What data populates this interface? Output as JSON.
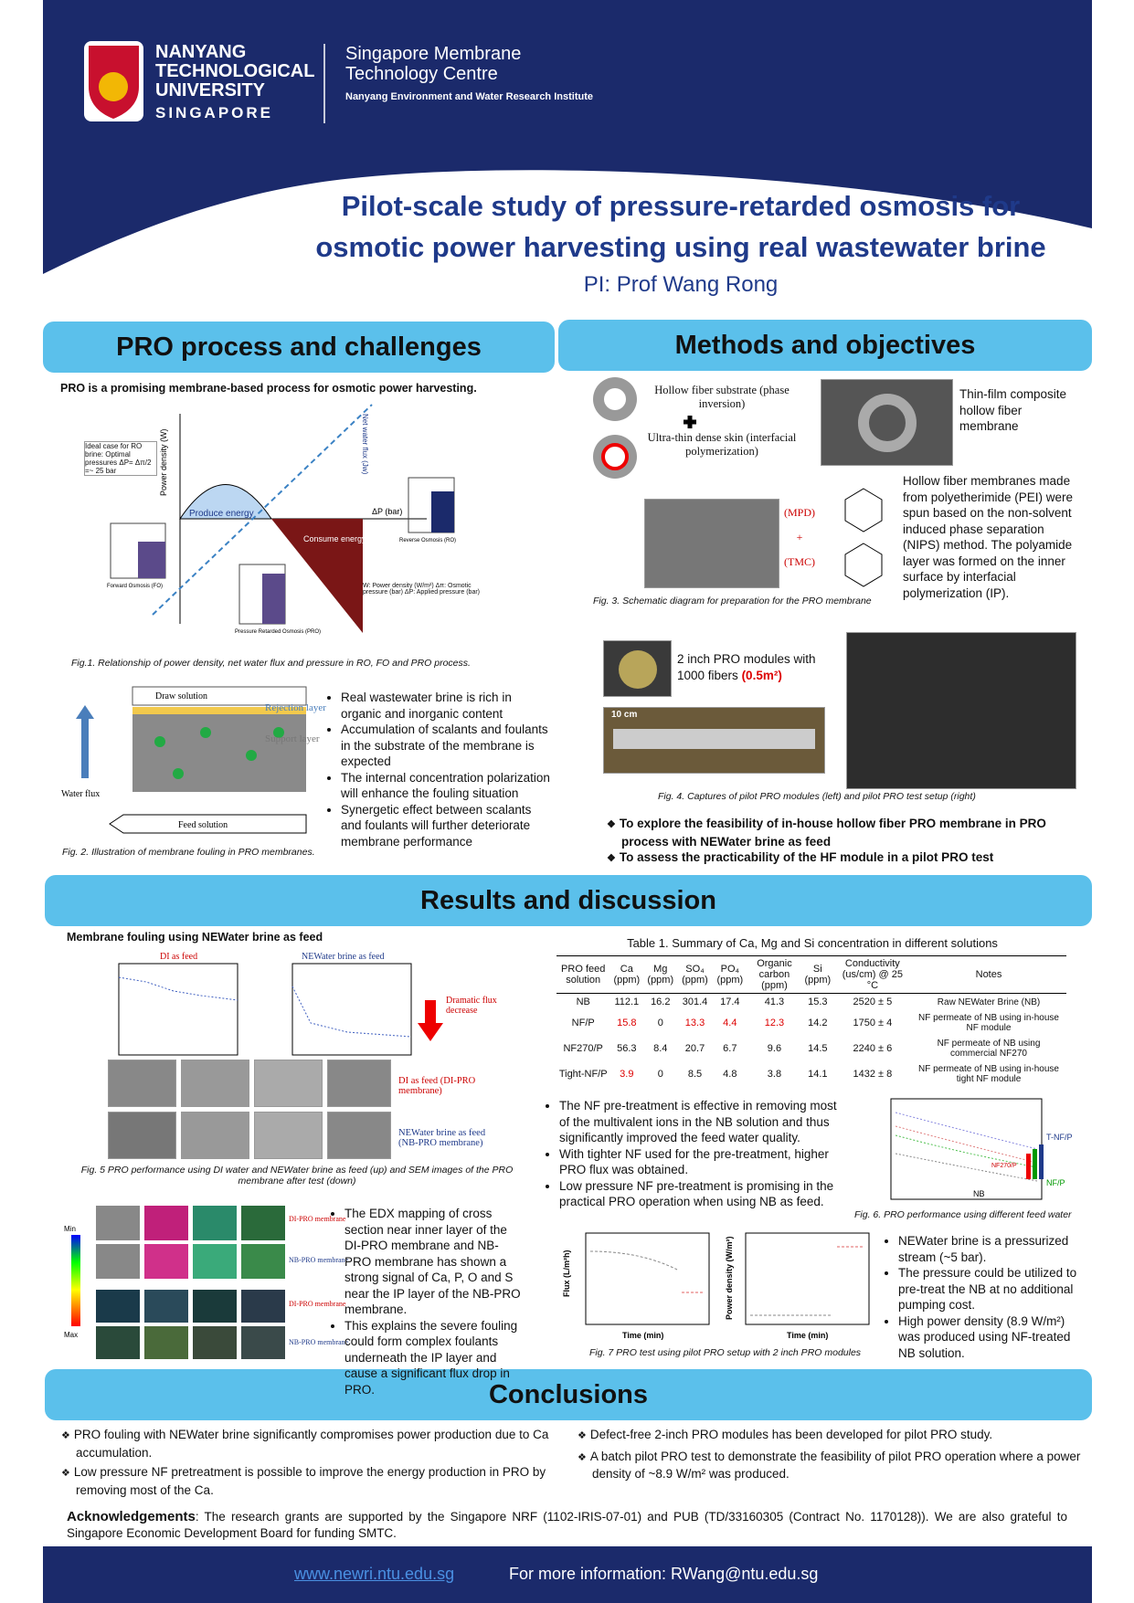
{
  "header": {
    "university": [
      "NANYANG",
      "TECHNOLOGICAL",
      "UNIVERSITY",
      "SINGAPORE"
    ],
    "centre": [
      "Singapore Membrane",
      "Technology Centre"
    ],
    "institute": "Nanyang Environment and Water Research Institute",
    "title": [
      "Pilot-scale study of pressure-retarded osmosis for",
      "osmotic power harvesting using real wastewater brine"
    ],
    "pi": "PI: Prof Wang Rong"
  },
  "pro_process": {
    "heading": "PRO process and challenges",
    "intro": "PRO is a promising membrane-based process for osmotic power harvesting.",
    "fig1_labels": [
      "Produce energy",
      "Consume energy",
      "ΔP (bar)",
      "Power density (W)",
      "Net water flux (Jw)",
      "Ideal case for RO brine: Optimal pressures ΔP= Δπ/2 =~ 25 bar",
      "Forward Osmosis (FO)",
      "Pressure Retarded Osmosis (PRO)",
      "Reverse Osmosis (RO)",
      "W: Power density (W/m²)  Δπ: Osmotic pressure (bar)  ΔP: Applied pressure (bar)"
    ],
    "fig1_caption": "Fig.1. Relationship of power density, net water flux and pressure in RO, FO and PRO process.",
    "fig2_labels": [
      "Draw solution",
      "Rejection layer",
      "Support layer",
      "Water flux",
      "Feed solution"
    ],
    "fig2_caption": "Fig. 2. Illustration of membrane fouling in PRO membranes.",
    "bullets": [
      "Real wastewater brine is rich in organic and inorganic content",
      "Accumulation of scalants and foulants in the substrate of the membrane is expected",
      "The internal concentration polarization will enhance the fouling situation",
      "Synergetic effect between scalants and foulants will further deteriorate membrane performance"
    ]
  },
  "methods": {
    "heading": "Methods and objectives",
    "fiber_labels": [
      "Hollow fiber substrate (phase inversion)",
      "Ultra-thin dense skin (interfacial polymerization)"
    ],
    "tfc_label": "Thin-film composite hollow fiber membrane",
    "chem_labels": [
      "(MPD)",
      "+",
      "(TMC)"
    ],
    "paragraph": "Hollow fiber membranes made from polyetherimide (PEI) were spun based on the non-solvent induced phase separation (NIPS) method. The polyamide layer was formed on the inner surface by interfacial polymerization (IP).",
    "fig3_caption": "Fig. 3. Schematic diagram for preparation for the PRO membrane",
    "module_text": "2 inch PRO modules with 1000 fibers",
    "module_area": "(0.5m²)",
    "scale_label": "10 cm",
    "fig4_caption": "Fig. 4. Captures of pilot PRO modules (left) and pilot PRO test setup (right)",
    "objectives": [
      "To explore the feasibility of in-house hollow fiber PRO membrane in PRO process with NEWater brine as feed",
      "To assess the practicability of the HF module in a pilot PRO test"
    ]
  },
  "results": {
    "heading": "Results and discussion",
    "subheading": "Membrane fouling using NEWater brine as feed",
    "fig5_labels": [
      "DI as feed",
      "NEWater brine as feed",
      "Dramatic flux decrease",
      "DI as feed (DI-PRO membrane)",
      "NEWater brine as feed (NB-PRO membrane)"
    ],
    "fig5_caption": "Fig. 5 PRO performance using DI water and NEWater brine as feed (up) and SEM images of the PRO membrane after test (down)",
    "edx_labels": [
      "DI-PRO membrane",
      "NB-PRO membrane",
      "DI-PRO membrane",
      "NB-PRO membrane",
      "Min",
      "Max"
    ],
    "edx_bullets": [
      "The EDX mapping of cross section near inner layer of the DI-PRO membrane and NB-PRO membrane has shown a strong signal of Ca, P, O and S near the IP layer of the NB-PRO membrane.",
      "This explains the severe fouling could form complex foulants underneath the IP layer and cause a significant flux drop in PRO."
    ],
    "table": {
      "title": "Table 1. Summary of Ca, Mg and Si concentration in different solutions",
      "headers": [
        "PRO feed solution",
        "Ca (ppm)",
        "Mg (ppm)",
        "SO₄ (ppm)",
        "PO₄ (ppm)",
        "Organic carbon (ppm)",
        "Si (ppm)",
        "Conductivity (us/cm) @ 25 °C",
        "Notes"
      ],
      "rows": [
        [
          "NB",
          "112.1",
          "16.2",
          "301.4",
          "17.4",
          "41.3",
          "15.3",
          "2520 ± 5",
          "Raw NEWater Brine (NB)"
        ],
        [
          "NF/P",
          "15.8",
          "0",
          "13.3",
          "4.4",
          "12.3",
          "14.2",
          "1750 ± 4",
          "NF permeate of NB using in-house NF module"
        ],
        [
          "NF270/P",
          "56.3",
          "8.4",
          "20.7",
          "6.7",
          "9.6",
          "14.5",
          "2240 ± 6",
          "NF permeate of NB using commercial NF270"
        ],
        [
          "Tight-NF/P",
          "3.9",
          "0",
          "8.5",
          "4.8",
          "3.8",
          "14.1",
          "1432 ± 8",
          "NF permeate of NB using in-house tight NF module"
        ]
      ]
    },
    "nf_bullets": [
      "The NF pre-treatment is effective in removing most of the multivalent ions in the NB solution and thus significantly improved the feed water quality.",
      "With tighter NF used for the pre-treatment, higher PRO flux was obtained.",
      "Low pressure NF pre-treatment is promising in the practical PRO operation when using NB as feed."
    ],
    "fig6_labels": [
      "T-NF/P",
      "NF270/P",
      "NF/P",
      "NB"
    ],
    "fig6_caption": "Fig. 6. PRO performance using different feed water",
    "fig7_labels": [
      "Flux (L/m²h)",
      "Time (min)",
      "Power density (W/m²)",
      "Time (min)"
    ],
    "fig7_caption": "Fig. 7 PRO test using pilot PRO setup with 2 inch PRO modules",
    "pilot_bullets": [
      "NEWater brine is a pressurized stream (~5 bar).",
      "The pressure could be utilized to pre-treat the NB at no additional pumping cost.",
      "High power density (8.9 W/m²) was produced using NF-treated NB solution."
    ]
  },
  "conclusions": {
    "heading": "Conclusions",
    "left": [
      "PRO fouling with NEWater brine significantly compromises power production due to Ca accumulation.",
      "Low pressure NF pretreatment is possible to improve the energy production in PRO by removing most of the Ca."
    ],
    "right": [
      "Defect-free 2-inch PRO modules has been developed for pilot PRO study.",
      "A batch pilot PRO test to demonstrate the feasibility of pilot PRO operation where a power density of ~8.9 W/m² was produced."
    ],
    "ack_label": "Acknowledgements",
    "ack_text": ": The research grants are supported by the Singapore NRF (1102-IRIS-07-01) and PUB (TD/33160305 (Contract No. 1170128)). We are also grateful to Singapore Economic Development Board for funding SMTC."
  },
  "footer": {
    "website": "www.newri.ntu.edu.sg",
    "contact": "For more information:  RWang@ntu.edu.sg"
  }
}
